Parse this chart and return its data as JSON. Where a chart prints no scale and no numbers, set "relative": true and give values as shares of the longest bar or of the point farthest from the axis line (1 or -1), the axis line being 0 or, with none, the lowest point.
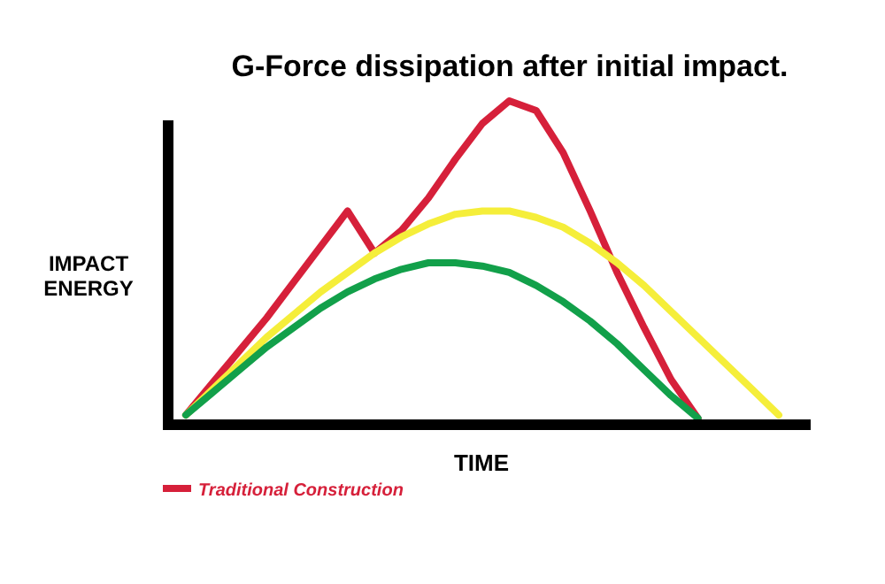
{
  "chart_data": {
    "type": "line",
    "title": "G-Force dissipation after initial impact.",
    "xlabel": "TIME",
    "ylabel": "IMPACT ENERGY",
    "relative": true,
    "legend": "bottom left",
    "marker": "none",
    "line_style": "solid",
    "categories": [
      null,
      null,
      null,
      null,
      null,
      null,
      null,
      null,
      null,
      null,
      null,
      null,
      null,
      null,
      null,
      null,
      null,
      null,
      null,
      null,
      null,
      null,
      null
    ],
    "series": [
      {
        "name": "Traditional Construction",
        "color": "#d6203a",
        "values": [
          0.03,
          0.13,
          0.23,
          0.33,
          0.44,
          0.55,
          0.66,
          0.53,
          0.6,
          0.7,
          0.82,
          0.93,
          1.0,
          0.97,
          0.84,
          0.66,
          0.47,
          0.3,
          0.14,
          0.02,
          null,
          null,
          null
        ]
      },
      {
        "color": "#f5ee3a",
        "values": [
          0.03,
          0.11,
          0.19,
          0.27,
          0.34,
          0.41,
          0.47,
          0.53,
          0.58,
          0.62,
          0.65,
          0.66,
          0.66,
          0.64,
          0.61,
          0.56,
          0.5,
          0.43,
          0.35,
          0.27,
          0.19,
          0.11,
          0.03
        ]
      },
      {
        "color": "#12a04a",
        "values": [
          0.03,
          0.1,
          0.17,
          0.24,
          0.3,
          0.36,
          0.41,
          0.45,
          0.48,
          0.5,
          0.5,
          0.49,
          0.47,
          0.43,
          0.38,
          0.32,
          0.25,
          0.17,
          0.09,
          0.02,
          null,
          null,
          null
        ]
      }
    ]
  }
}
